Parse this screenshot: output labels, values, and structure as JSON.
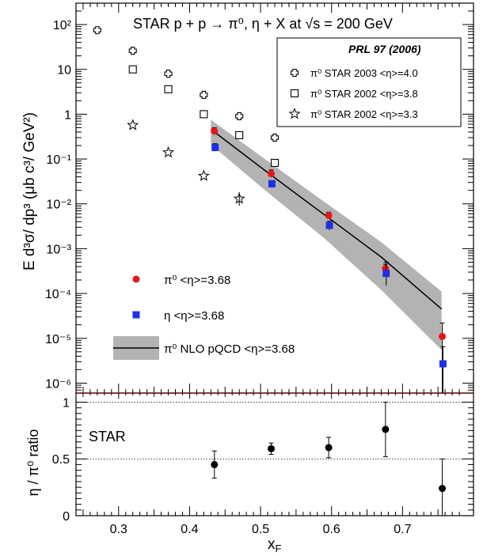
{
  "chart_data": [
    {
      "type": "scatter",
      "title": "STAR   p + p → π⁰, η + X at √s = 200 GeV",
      "xlabel": "",
      "ylabel": "E d³σ/ dp³ (μb c³/ GeV²)",
      "yscale": "log",
      "xlim": [
        0.24,
        0.8
      ],
      "ylim": [
        6e-07,
        300
      ],
      "x_ticks": [
        "0.3",
        "0.4",
        "0.5",
        "0.6",
        "0.7"
      ],
      "y_ticks": [
        "10⁻⁶",
        "10⁻⁵",
        "10⁻⁴",
        "10⁻³",
        "10⁻²",
        "10⁻¹",
        "1",
        "10",
        "10²"
      ],
      "reference": {
        "title": "PRL 97 (2006)",
        "series": [
          {
            "name": "π⁰ STAR 2003  <η>=4.0",
            "marker": "cross",
            "x": [
              0.27,
              0.32,
              0.37,
              0.42,
              0.47,
              0.52
            ],
            "y": [
              75,
              26,
              8,
              2.7,
              0.9,
              0.3
            ]
          },
          {
            "name": "π⁰ STAR 2002  <η>=3.8",
            "marker": "open-square",
            "x": [
              0.32,
              0.37,
              0.42,
              0.47,
              0.52
            ],
            "y": [
              10,
              3.6,
              1.0,
              0.34,
              0.082
            ]
          },
          {
            "name": "π⁰ STAR 2002  <η>=3.3",
            "marker": "open-star",
            "x": [
              0.32,
              0.37,
              0.42,
              0.47
            ],
            "y": [
              0.57,
              0.14,
              0.042,
              0.013
            ]
          }
        ]
      },
      "series": [
        {
          "name": "π⁰   <η>=3.68",
          "marker": "filled-circle",
          "color": "#e8141c",
          "x": [
            0.435,
            0.515,
            0.596,
            0.676,
            0.756
          ],
          "y": [
            0.42,
            0.047,
            0.0055,
            0.00036,
            1.1e-05
          ],
          "y_err_hi": [
            0.5,
            0.057,
            0.0065,
            0.00045,
            2.2e-05
          ],
          "y_err_lo": [
            0.35,
            0.039,
            0.0047,
            0.00028,
            6e-07
          ]
        },
        {
          "name": "η       <η>=3.68",
          "marker": "filled-square",
          "color": "#1f2fe8",
          "x": [
            0.435,
            0.515,
            0.596,
            0.676,
            0.756
          ],
          "y": [
            0.18,
            0.028,
            0.0033,
            0.00028,
            2.7e-06
          ],
          "y_err_hi": [
            0.22,
            0.033,
            0.0041,
            0.0005,
            6.5e-06
          ],
          "y_err_lo": [
            0.15,
            0.023,
            0.0026,
            0.00015,
            6e-07
          ]
        },
        {
          "name": "π⁰   NLO pQCD  <η>=3.68",
          "marker": "line-band",
          "color": "#000000",
          "band_color": "#b3b3b3",
          "x": [
            0.43,
            0.51,
            0.59,
            0.67,
            0.755
          ],
          "y": [
            0.46,
            0.05,
            0.0057,
            0.00065,
            4.5e-05
          ],
          "band_hi": [
            0.75,
            0.09,
            0.011,
            0.0014,
            0.00011
          ],
          "band_lo": [
            0.21,
            0.018,
            0.0017,
            0.00012,
            5.5e-06
          ]
        }
      ]
    },
    {
      "type": "scatter",
      "xlabel": "x_F",
      "ylabel": "η / π⁰ ratio",
      "label": "STAR",
      "xlim": [
        0.24,
        0.8
      ],
      "ylim": [
        0,
        1.08
      ],
      "x_ticks": [
        "0.3",
        "0.4",
        "0.5",
        "0.6",
        "0.7"
      ],
      "y_ticks": [
        "0",
        "0.5",
        "1"
      ],
      "reference_lines": [
        0.5,
        1.0
      ],
      "series": [
        {
          "marker": "filled-circle",
          "color": "#000000",
          "x": [
            0.435,
            0.515,
            0.596,
            0.676,
            0.756
          ],
          "y": [
            0.45,
            0.59,
            0.6,
            0.76,
            0.24
          ],
          "y_err": [
            0.12,
            0.05,
            0.09,
            0.24,
            0.26
          ]
        }
      ]
    }
  ]
}
